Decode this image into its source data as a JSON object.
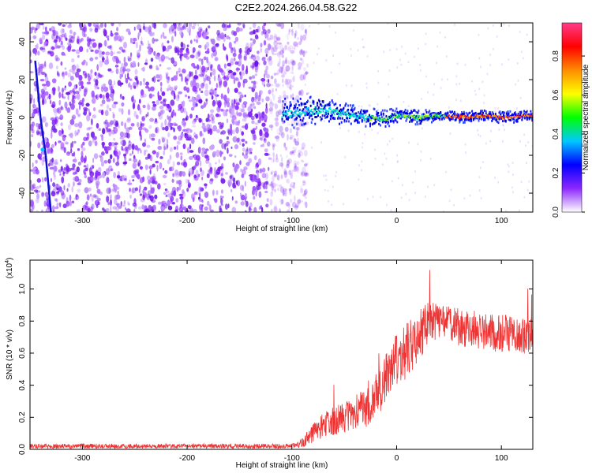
{
  "title": "C2E2.2024.266.04.58.G22",
  "chart_data": [
    {
      "type": "heatmap",
      "xlabel": "Height of straight line (km)",
      "ylabel": "Frequency (Hz)",
      "xlim": [
        -350,
        130
      ],
      "ylim": [
        -50,
        50
      ],
      "xticks": [
        -300,
        -200,
        -100,
        0,
        100
      ],
      "yticks": [
        -40,
        -20,
        0,
        20,
        40
      ],
      "colorbar": {
        "label": "Normalized spectral amplitude",
        "range": [
          0.0,
          0.97
        ],
        "ticks": [
          "0.0",
          "0.2",
          "0.4",
          "0.6",
          "0.8"
        ],
        "colors": [
          "#ffffff",
          "#8c28ff",
          "#0000ff",
          "#00c8ff",
          "#00ff00",
          "#ffff00",
          "#ff8c00",
          "#ff0000",
          "#ff3c8c"
        ]
      },
      "features": {
        "noise_region_x": [
          -350,
          -95
        ],
        "noise_color": "#8c28ff",
        "signal_line": {
          "x": [
            -110,
            -90,
            -70,
            -50,
            -30,
            -10,
            0,
            20,
            40,
            60,
            80,
            100,
            130
          ],
          "y": [
            2,
            3,
            4,
            2,
            0,
            -1,
            1,
            0,
            1,
            0,
            1,
            0,
            1
          ],
          "halfwidth_hz": [
            8,
            8,
            7,
            6,
            5,
            5,
            4,
            4,
            3,
            3,
            3,
            3,
            3
          ]
        },
        "diagonal_streak": {
          "x": [
            -345,
            -340,
            -335,
            -330
          ],
          "y": [
            30,
            0,
            -20,
            -50
          ]
        }
      }
    },
    {
      "type": "line",
      "xlabel": "Height of straight line (km)",
      "ylabel": "SNR (10 * v/v)",
      "yscale_label": "(x10",
      "yscale_exp": "4",
      "yscale_close": ")",
      "xlim": [
        -350,
        130
      ],
      "ylim": [
        0,
        1.18
      ],
      "xticks": [
        -300,
        -200,
        -100,
        0,
        100
      ],
      "yticks": [
        "0.0",
        "0.2",
        "0.4",
        "0.6",
        "0.8",
        "1.0"
      ],
      "color": "#ee3333",
      "envelope": {
        "x": [
          -350,
          -100,
          -90,
          -80,
          -70,
          -60,
          -50,
          -40,
          -30,
          -20,
          -10,
          0,
          10,
          20,
          30,
          40,
          60,
          80,
          100,
          130
        ],
        "y": [
          0.02,
          0.02,
          0.04,
          0.1,
          0.15,
          0.18,
          0.2,
          0.23,
          0.25,
          0.33,
          0.45,
          0.55,
          0.62,
          0.7,
          0.78,
          0.8,
          0.76,
          0.74,
          0.72,
          0.7
        ],
        "spread": [
          0.015,
          0.015,
          0.03,
          0.06,
          0.08,
          0.09,
          0.1,
          0.11,
          0.12,
          0.14,
          0.16,
          0.18,
          0.18,
          0.16,
          0.14,
          0.12,
          0.12,
          0.12,
          0.12,
          0.12
        ]
      }
    }
  ]
}
